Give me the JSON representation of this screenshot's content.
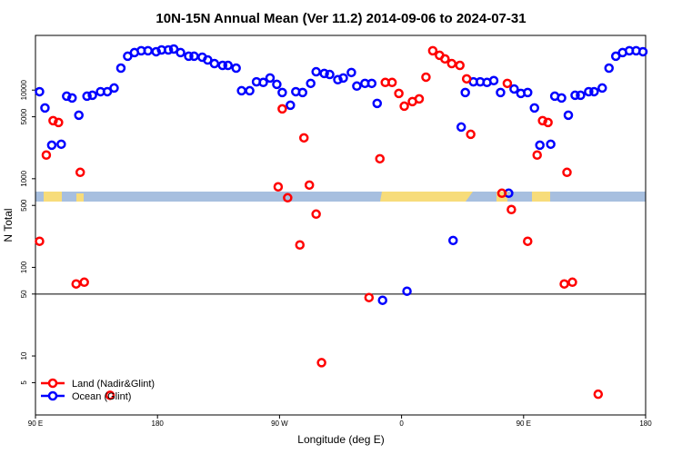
{
  "chart_data": {
    "type": "scatter",
    "title": "10N-15N Annual Mean (Ver 11.2)   2014-09-06 to 2024-07-31",
    "x_label": "Longitude (deg E)",
    "y_label": "N Total",
    "log_y": true,
    "ylim": [
      2.16,
      41400
    ],
    "yticks": [
      5,
      10,
      50,
      100,
      500,
      1000,
      5000,
      10000
    ],
    "xlim": [
      90,
      540
    ],
    "xticks": [
      {
        "value": 90,
        "label": "90 E"
      },
      {
        "value": 180,
        "label": "180"
      },
      {
        "value": 270,
        "label": "90 W"
      },
      {
        "value": 360,
        "label": "0"
      },
      {
        "value": 450,
        "label": "90 E"
      },
      {
        "value": 540,
        "label": "180"
      }
    ],
    "hline": 50,
    "legend": "bottom-left",
    "series": [
      {
        "name": "Land (Nadir&Glint)",
        "color": "#ff0000",
        "x": [
          93,
          98,
          103,
          107,
          123,
          120,
          126,
          145,
          269,
          272,
          276,
          285,
          288,
          292,
          297,
          301,
          336,
          344,
          348,
          353,
          358,
          362,
          368,
          373,
          378,
          383,
          388,
          392,
          397,
          403,
          408,
          411,
          434,
          438,
          441,
          453,
          460,
          464,
          468,
          482,
          480,
          486,
          505
        ],
        "values": [
          197,
          1850,
          4520,
          4310,
          1180,
          65,
          68,
          3.6,
          810,
          6140,
          610,
          179,
          2890,
          848,
          399,
          8.4,
          45.6,
          1680,
          12200,
          12200,
          9170,
          6590,
          7420,
          7960,
          14000,
          27800,
          24700,
          22500,
          19900,
          19000,
          13400,
          3170,
          686,
          11900,
          449,
          197,
          1850,
          4520,
          4310,
          1180,
          65,
          68,
          3.7
        ]
      },
      {
        "name": "Ocean (Glint)",
        "color": "#0000ff",
        "x": [
          93,
          97,
          102,
          109,
          113,
          117,
          122,
          128,
          132,
          138,
          143,
          148,
          153,
          158,
          163,
          168,
          173,
          179,
          183,
          188,
          192,
          197,
          203,
          207,
          213,
          217,
          222,
          228,
          232,
          238,
          242,
          248,
          253,
          258,
          263,
          268,
          272,
          278,
          282,
          287,
          293,
          297,
          303,
          307,
          313,
          317,
          323,
          327,
          333,
          338,
          342,
          346,
          364,
          398,
          404,
          407,
          413,
          418,
          423,
          428,
          433,
          439,
          443,
          448,
          453,
          458,
          462,
          470,
          473,
          478,
          483,
          488,
          492,
          498,
          502,
          508,
          513,
          518,
          523,
          528,
          533,
          538
        ],
        "values": [
          9600,
          6290,
          2390,
          2450,
          8540,
          8150,
          5210,
          8540,
          8740,
          9600,
          9600,
          10560,
          17700,
          24100,
          26500,
          27800,
          27800,
          27100,
          28400,
          28400,
          29100,
          26500,
          24100,
          24100,
          23500,
          21900,
          19900,
          19000,
          19000,
          17700,
          9840,
          9840,
          12400,
          12200,
          13700,
          11600,
          9390,
          6750,
          9600,
          9390,
          11900,
          16100,
          15400,
          15000,
          13100,
          13700,
          15800,
          11100,
          11900,
          11900,
          7080,
          42.5,
          53.8,
          201,
          3830,
          9390,
          12400,
          12400,
          12200,
          12800,
          9390,
          686,
          10300,
          9170,
          9390,
          6290,
          2390,
          2450,
          8540,
          8150,
          5210,
          8740,
          8740,
          9600,
          9600,
          10560,
          17700,
          24100,
          26500,
          27800,
          27800,
          27100
        ]
      }
    ]
  }
}
